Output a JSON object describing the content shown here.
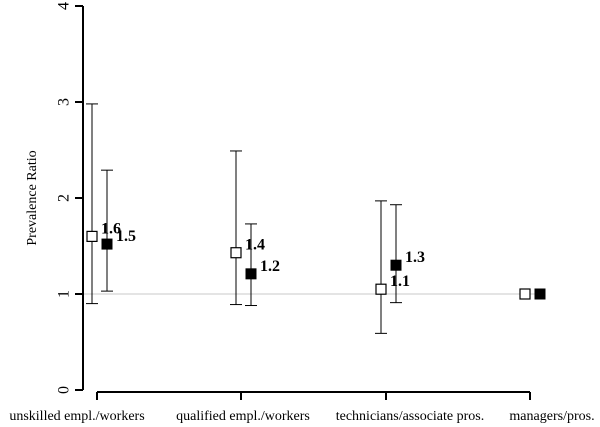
{
  "chart_data": {
    "type": "scatter",
    "ylabel": "Prevalence Ratio",
    "ylim": [
      0,
      4
    ],
    "yticks": [
      "0",
      "1",
      "2",
      "3",
      "4"
    ],
    "reference_line": 1,
    "categories": [
      "unskilled empl./workers",
      "qualified empl./workers",
      "technicians/associate pros.",
      "managers/pros."
    ],
    "series": [
      {
        "marker": "open-square",
        "color": "#000000",
        "values": [
          1.6,
          1.43,
          1.05,
          1.0
        ],
        "lower": [
          0.9,
          0.89,
          0.59,
          null
        ],
        "upper": [
          2.98,
          2.49,
          1.97,
          null
        ],
        "labels": [
          "1.6",
          "1.4",
          "1.1",
          ""
        ]
      },
      {
        "marker": "filled-square",
        "color": "#000000",
        "values": [
          1.52,
          1.21,
          1.3,
          1.0
        ],
        "lower": [
          1.03,
          0.88,
          0.91,
          null
        ],
        "upper": [
          2.29,
          1.73,
          1.93,
          null
        ],
        "labels": [
          "1.5",
          "1.2",
          "1.3",
          ""
        ]
      }
    ]
  }
}
